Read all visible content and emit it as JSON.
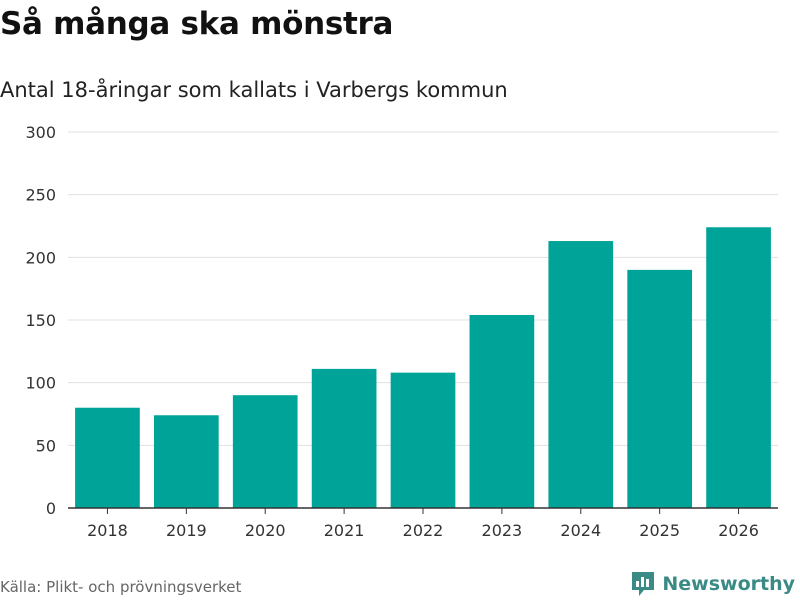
{
  "header": {
    "title": "Så många ska mönstra",
    "subtitle": "Antal 18-åringar som kallats i Varbergs kommun"
  },
  "footer": {
    "source": "Källa: Plikt- och prövningsverket",
    "brand": "Newsworthy"
  },
  "colors": {
    "bar": "#00a398",
    "grid": "#e0e0e0",
    "axis": "#333333",
    "brand": "#3a8a86"
  },
  "chart_data": {
    "type": "bar",
    "title": "Så många ska mönstra",
    "subtitle": "Antal 18-åringar som kallats i Varbergs kommun",
    "xlabel": "",
    "ylabel": "",
    "categories": [
      "2018",
      "2019",
      "2020",
      "2021",
      "2022",
      "2023",
      "2024",
      "2025",
      "2026"
    ],
    "values": [
      80,
      74,
      90,
      111,
      108,
      154,
      213,
      190,
      224
    ],
    "ylim": [
      0,
      300
    ],
    "yticks": [
      0,
      50,
      100,
      150,
      200,
      250,
      300
    ],
    "ytick_labels": [
      "0",
      "50",
      "100",
      "150",
      "200",
      "250",
      "300"
    ],
    "grid": true,
    "legend": "none"
  }
}
